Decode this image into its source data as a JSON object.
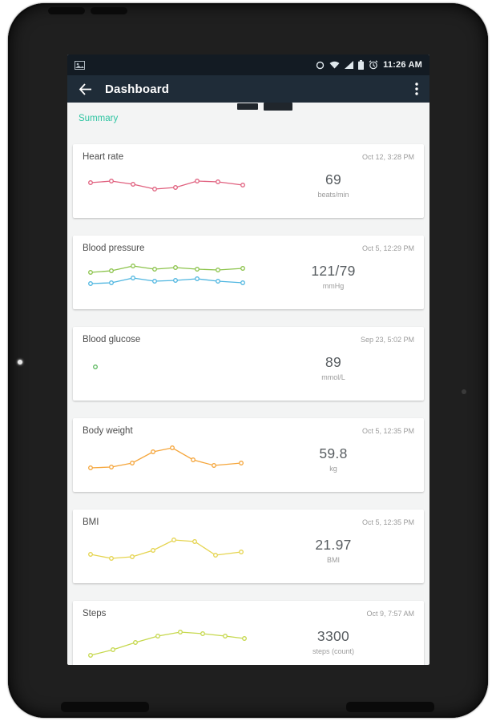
{
  "status_bar": {
    "time": "11:26 AM",
    "icons": [
      "photo-icon",
      "data-circle-icon",
      "wifi-icon",
      "signal-icon",
      "battery-icon",
      "alarm-icon"
    ]
  },
  "app_bar": {
    "title": "Dashboard",
    "icons": [
      "back-arrow-icon",
      "overflow-menu-icon"
    ]
  },
  "content": {
    "section_label": "Summary"
  },
  "cards": [
    {
      "title": "Heart rate",
      "date": "Oct 12, 3:28 PM",
      "value": "69",
      "unit": "beats/min",
      "chart": {
        "type": "line",
        "series": [
          {
            "name": "heart-rate",
            "color": "#e0607e",
            "points": [
              [
                4,
                22
              ],
              [
                30,
                20
              ],
              [
                57,
                24
              ],
              [
                84,
                30
              ],
              [
                110,
                28
              ],
              [
                137,
                20
              ],
              [
                163,
                21
              ],
              [
                194,
                25
              ]
            ]
          }
        ]
      }
    },
    {
      "title": "Blood pressure",
      "date": "Oct 5, 12:29 PM",
      "value": "121/79",
      "unit": "mmHg",
      "chart": {
        "type": "line",
        "series": [
          {
            "name": "systolic",
            "color": "#8bc34a",
            "points": [
              [
                4,
                20
              ],
              [
                30,
                18
              ],
              [
                57,
                12
              ],
              [
                84,
                16
              ],
              [
                110,
                14
              ],
              [
                137,
                16
              ],
              [
                163,
                17
              ],
              [
                194,
                15
              ]
            ]
          },
          {
            "name": "diastolic",
            "color": "#4fb6e0",
            "points": [
              [
                4,
                34
              ],
              [
                30,
                33
              ],
              [
                57,
                27
              ],
              [
                84,
                31
              ],
              [
                110,
                30
              ],
              [
                137,
                28
              ],
              [
                163,
                31
              ],
              [
                194,
                33
              ]
            ]
          }
        ]
      }
    },
    {
      "title": "Blood glucose",
      "date": "Sep 23, 5:02 PM",
      "value": "89",
      "unit": "mmol/L",
      "chart": {
        "type": "scatter",
        "series": [
          {
            "name": "glucose",
            "color": "#5cb85f",
            "points": [
              [
                10,
                24
              ]
            ]
          }
        ]
      }
    },
    {
      "title": "Body weight",
      "date": "Oct 5, 12:35 PM",
      "value": "59.8",
      "unit": "kg",
      "chart": {
        "type": "line",
        "series": [
          {
            "name": "weight",
            "color": "#f5a53a",
            "points": [
              [
                4,
                36
              ],
              [
                30,
                35
              ],
              [
                56,
                30
              ],
              [
                82,
                16
              ],
              [
                106,
                11
              ],
              [
                132,
                26
              ],
              [
                158,
                33
              ],
              [
                192,
                30
              ]
            ]
          }
        ]
      }
    },
    {
      "title": "BMI",
      "date": "Oct 5, 12:35 PM",
      "value": "21.97",
      "unit": "BMI",
      "chart": {
        "type": "line",
        "series": [
          {
            "name": "bmi",
            "color": "#e5d44e",
            "points": [
              [
                4,
                30
              ],
              [
                30,
                35
              ],
              [
                56,
                33
              ],
              [
                82,
                25
              ],
              [
                108,
                12
              ],
              [
                134,
                14
              ],
              [
                160,
                31
              ],
              [
                192,
                27
              ]
            ]
          }
        ]
      }
    },
    {
      "title": "Steps",
      "date": "Oct 9, 7:57 AM",
      "value": "3300",
      "unit": "steps (count)",
      "chart": {
        "type": "line",
        "series": [
          {
            "name": "steps",
            "color": "#c6d84d",
            "points": [
              [
                4,
                42
              ],
              [
                32,
                35
              ],
              [
                60,
                26
              ],
              [
                88,
                18
              ],
              [
                116,
                13
              ],
              [
                144,
                15
              ],
              [
                172,
                18
              ],
              [
                196,
                21
              ]
            ]
          }
        ]
      }
    }
  ]
}
